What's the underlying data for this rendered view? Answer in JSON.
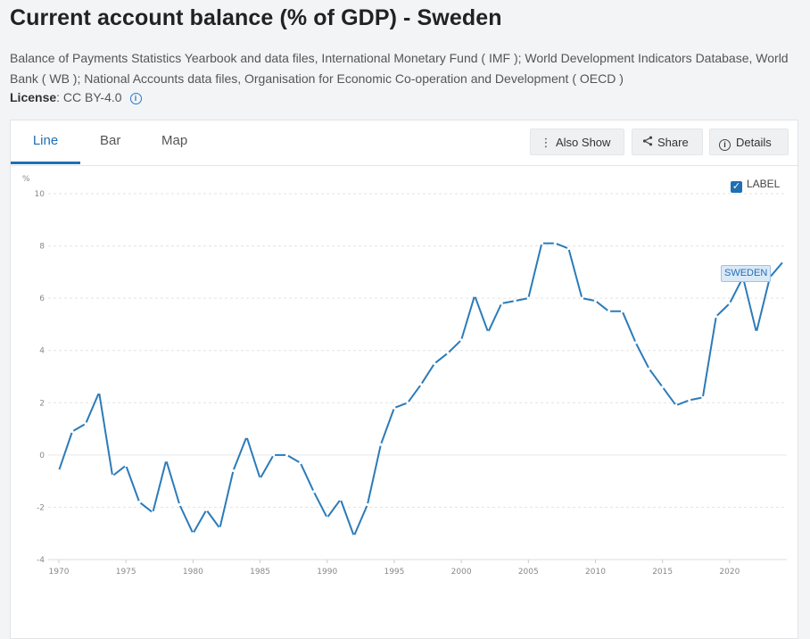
{
  "header": {
    "title": "Current account balance (% of GDP) - Sweden",
    "source": "Balance of Payments Statistics Yearbook and data files, International Monetary Fund ( IMF ); World Development Indicators Database, World Bank ( WB ); National Accounts data files, Organisation for Economic Co-operation and Development ( OECD )",
    "license_label": "License",
    "license_value": ": CC BY-4.0",
    "license_info_icon": "info-icon"
  },
  "tabs": [
    {
      "label": "Line",
      "active": true
    },
    {
      "label": "Bar",
      "active": false
    },
    {
      "label": "Map",
      "active": false
    }
  ],
  "toolbar": {
    "also_show": {
      "label": "Also Show",
      "icon": "vertical-dots-icon"
    },
    "share": {
      "label": "Share",
      "icon": "share-icon"
    },
    "details": {
      "label": "Details",
      "icon": "info-icon"
    }
  },
  "label_toggle": {
    "label": "LABEL",
    "checked": true
  },
  "colors": {
    "accent": "#1f6fb5",
    "series": "#2b7bb9"
  },
  "chart_data": {
    "type": "line",
    "unit_label": "%",
    "ylim": [
      -4,
      10
    ],
    "yticks": [
      -4,
      -2,
      0,
      2,
      4,
      6,
      8,
      10
    ],
    "xlim": [
      1970,
      2024
    ],
    "xticks": [
      1970,
      1975,
      1980,
      1985,
      1990,
      1995,
      2000,
      2005,
      2010,
      2015,
      2020
    ],
    "grid": true,
    "series": [
      {
        "name": "SWEDEN",
        "x": [
          1970,
          1971,
          1972,
          1973,
          1974,
          1975,
          1976,
          1977,
          1978,
          1979,
          1980,
          1981,
          1982,
          1983,
          1984,
          1985,
          1986,
          1987,
          1988,
          1989,
          1990,
          1991,
          1992,
          1993,
          1994,
          1995,
          1996,
          1997,
          1998,
          1999,
          2000,
          2001,
          2002,
          2003,
          2004,
          2005,
          2006,
          2007,
          2008,
          2009,
          2010,
          2011,
          2012,
          2013,
          2014,
          2015,
          2016,
          2017,
          2018,
          2019,
          2020,
          2021,
          2022,
          2023,
          2024
        ],
        "values": [
          -0.6,
          0.9,
          1.2,
          2.4,
          -0.8,
          -0.4,
          -1.8,
          -2.2,
          -0.2,
          -1.9,
          -3.0,
          -2.1,
          -2.8,
          -0.6,
          0.7,
          -0.9,
          0.0,
          0.0,
          -0.3,
          -1.4,
          -2.4,
          -1.7,
          -3.1,
          -1.9,
          0.4,
          1.8,
          2.0,
          2.7,
          3.5,
          3.9,
          4.4,
          6.1,
          4.7,
          5.8,
          5.9,
          6.0,
          8.1,
          8.1,
          7.9,
          6.0,
          5.9,
          5.5,
          5.5,
          4.3,
          3.3,
          2.6,
          1.9,
          2.1,
          2.2,
          5.3,
          5.8,
          6.8,
          4.7,
          6.8,
          7.4
        ]
      }
    ]
  }
}
